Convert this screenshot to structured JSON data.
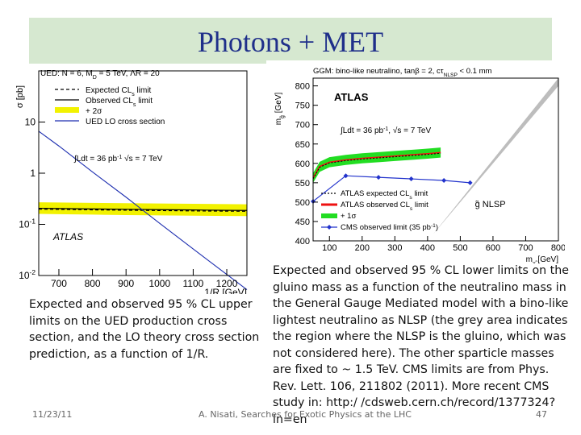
{
  "slide": {
    "title": "Photons + MET",
    "caption_left": "Expected and observed 95 % CL upper limits on the UED production cross section, and the LO theory cross section prediction, as a function of 1/R.",
    "caption_right": "Expected and observed 95 % CL lower limits on the gluino mass as a function of the neutralino mass in the General Gauge Mediated  model with a bino-like lightest neutralino as NLSP (the grey area indicates the region where the NLSP is the gluino, which was not considered here). The other sparticle masses are fixed to ~ 1.5 TeV. CMS limits are from Phys. Rev. Lett. 106, 211802 (2011). More recent CMS study in: http:/ /cdsweb.cern.ch/record/1377324?ln=en",
    "footer_date": "11/23/11",
    "footer_center": "A. Nisati, Searches for Exotic Physics at the LHC",
    "page_number": "47"
  },
  "chart_data": [
    {
      "type": "line",
      "header": "UED: N = 6, M",
      "header_sub": "D",
      "header_rest": " = 5 TeV, ΛR = 20",
      "ylabel": "σ [pb]",
      "xlabel": "1/R [GeV]",
      "log_y": true,
      "xlim": [
        640,
        1260
      ],
      "ylim": [
        0.01,
        100
      ],
      "x_ticks": [
        "700",
        "800",
        "900",
        "1000",
        "1100",
        "1200"
      ],
      "y_ticks": [
        {
          "base": "10",
          "exp": "-2",
          "value": 0.01
        },
        {
          "base": "10",
          "exp": "-1",
          "value": 0.1
        },
        {
          "base": "1",
          "exp": "",
          "value": 1
        },
        {
          "base": "10",
          "exp": "",
          "value": 10
        }
      ],
      "legend": [
        {
          "label": "Expected CL",
          "sub": "s",
          "tail": " limit",
          "style": "dashed"
        },
        {
          "label": "Observed CL",
          "sub": "s",
          "tail": " limit",
          "style": "solid"
        },
        {
          "label": "+ 2σ",
          "sub": "",
          "tail": "",
          "style": "band"
        },
        {
          "label": "UED LO cross section",
          "sub": "",
          "tail": "",
          "style": "blue"
        }
      ],
      "lumi_text": "∫Ldt = 36 pb",
      "lumi_sup": "-1",
      "energy_text": " √s = 7 TeV",
      "watermark": "ATLAS",
      "colors": {
        "band": "#f2f200",
        "expected": "#000000",
        "observed": "#000000",
        "theory": "#1e2fb0"
      },
      "series": [
        {
          "name": "Expected CLs limit",
          "x": [
            640,
            700,
            800,
            900,
            1000,
            1100,
            1200,
            1260
          ],
          "y": [
            0.198,
            0.196,
            0.192,
            0.189,
            0.186,
            0.183,
            0.181,
            0.18
          ]
        },
        {
          "name": "Observed CLs limit",
          "x": [
            640,
            700,
            800,
            900,
            1000,
            1100,
            1200,
            1260
          ],
          "y": [
            0.206,
            0.204,
            0.2,
            0.197,
            0.194,
            0.191,
            0.188,
            0.187
          ]
        },
        {
          "name": "+ 2σ",
          "x": [
            640,
            700,
            800,
            900,
            1000,
            1100,
            1200,
            1260
          ],
          "y_low": [
            0.16,
            0.158,
            0.155,
            0.152,
            0.15,
            0.148,
            0.146,
            0.145
          ],
          "y_high": [
            0.27,
            0.268,
            0.263,
            0.259,
            0.255,
            0.252,
            0.249,
            0.247
          ]
        },
        {
          "name": "UED LO cross section",
          "x": [
            640,
            700,
            800,
            900,
            1000,
            1100,
            1200,
            1260
          ],
          "y": [
            6.6,
            3.4,
            1.06,
            0.34,
            0.105,
            0.033,
            0.0105,
            0.0053
          ]
        }
      ]
    },
    {
      "type": "line",
      "header": "GGM: bino-like neutralino, tanβ = 2, cτ",
      "header_sub": "NLSP",
      "header_rest": " < 0.1 mm",
      "ylabel": "m",
      "ylabel_sub": "g̃",
      "ylabel_tail": " [GeV]",
      "xlabel": "m",
      "xlabel_sub": "χ̃",
      "xlabel_tail": " [GeV]",
      "xlim": [
        50,
        800
      ],
      "ylim": [
        400,
        820
      ],
      "x_ticks": [
        100,
        200,
        300,
        400,
        500,
        600,
        700,
        800
      ],
      "y_ticks": [
        400,
        450,
        500,
        550,
        600,
        650,
        700,
        750,
        800
      ],
      "legend": [
        {
          "label": "ATLAS expected CL",
          "sub": "s",
          "tail": " limit",
          "style": "dotted"
        },
        {
          "label": "ATLAS observed CL",
          "sub": "s",
          "tail": " limit",
          "style": "red"
        },
        {
          "label": "+ 1σ",
          "sub": "",
          "tail": "",
          "style": "green"
        },
        {
          "label": "CMS observed limit",
          "sub": "",
          "tail": " (35 pb",
          "tail_sup": "-1",
          "tail_end": ")",
          "style": "blue"
        }
      ],
      "region_label": "g̃ NLSP",
      "lumi_text": "∫Ldt = 36 pb",
      "lumi_sup": "-1",
      "energy_text": ", √s = 7 TeV",
      "watermark": "ATLAS",
      "colors": {
        "band": "#22dd22",
        "observed": "#ee1111",
        "expected": "#000000",
        "cms": "#2233cc",
        "grey": "#bdbdbd"
      },
      "grey_region": {
        "x": [
          415,
          800,
          800
        ],
        "y": [
          415,
          800,
          400
        ]
      },
      "series": [
        {
          "name": "+ 1σ",
          "x": [
            50,
            70,
            100,
            150,
            200,
            250,
            300,
            350,
            400,
            440
          ],
          "y_low": [
            550,
            578,
            590,
            596,
            600,
            603,
            606,
            609,
            612,
            615
          ],
          "y_high": [
            575,
            604,
            616,
            622,
            626,
            629,
            632,
            635,
            638,
            641
          ]
        },
        {
          "name": "ATLAS observed CLs limit",
          "x": [
            50,
            70,
            100,
            150,
            200,
            250,
            300,
            350,
            400,
            440
          ],
          "y": [
            562,
            592,
            603,
            609,
            613,
            616,
            619,
            622,
            625,
            628
          ]
        },
        {
          "name": "ATLAS expected CLs limit",
          "x": [
            50,
            70,
            100,
            150,
            200,
            250,
            300,
            350,
            400,
            440
          ],
          "y": [
            560,
            590,
            601,
            607,
            611,
            614,
            617,
            620,
            623,
            626
          ]
        },
        {
          "name": "CMS observed limit (35 pb-1)",
          "x": [
            50,
            150,
            250,
            350,
            450,
            530
          ],
          "y": [
            502,
            568,
            564,
            560,
            556,
            550
          ]
        }
      ]
    }
  ]
}
